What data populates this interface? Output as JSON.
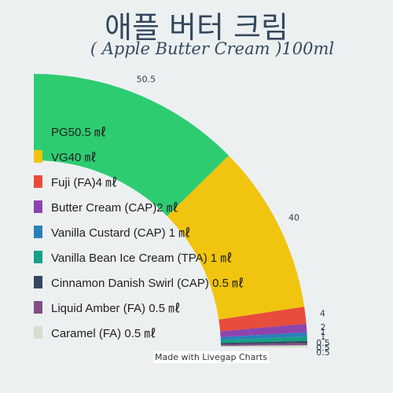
{
  "header": {
    "title": "애플 버터 크림",
    "subtitle": "( Apple Butter Cream )100ml"
  },
  "credit": "Made with Livegap Charts",
  "legend": [
    {
      "label": "PG50.5 ㎖",
      "color": "#2ecc71"
    },
    {
      "label": "VG40 ㎖",
      "color": "#f1c40f"
    },
    {
      "label": "Fuji (FA)4 ㎖",
      "color": "#e74c3c"
    },
    {
      "label": "Butter Cream (CAP)2 ㎖",
      "color": "#8e44ad"
    },
    {
      "label": "Vanilla Custard (CAP) 1 ㎖",
      "color": "#2980b9"
    },
    {
      "label": "Vanilla Bean Ice Cream (TPA) 1 ㎖",
      "color": "#16a085"
    },
    {
      "label": "Cinnamon Danish Swirl (CAP) 0.5 ㎖",
      "color": "#34495e"
    },
    {
      "label": "Liquid Amber (FA) 0.5 ㎖",
      "color": "#7f4f86"
    },
    {
      "label": "Caramel (FA) 0.5 ㎖",
      "color": "#d5dfd0"
    }
  ],
  "chart_data": {
    "type": "pie",
    "title": "애플 버터 크림",
    "subtitle": "( Apple Butter Cream )100ml",
    "categories": [
      "PG",
      "VG",
      "Fuji (FA)",
      "Butter Cream (CAP)",
      "Vanilla Custard (CAP)",
      "Vanilla Bean Ice Cream (TPA)",
      "Cinnamon Danish Swirl (CAP)",
      "Liquid Amber (FA)",
      "Caramel (FA)"
    ],
    "values": [
      50.5,
      40,
      4,
      2,
      1,
      1,
      0.5,
      0.5,
      0.5
    ],
    "data_labels": [
      "50.5",
      "40",
      "4",
      "2",
      "1",
      "1",
      "0.5",
      "0.5",
      "0.5"
    ],
    "colors": [
      "#2ecc71",
      "#f1c40f",
      "#e74c3c",
      "#8e44ad",
      "#2980b9",
      "#16a085",
      "#34495e",
      "#7f4f86",
      "#d5dfd0"
    ],
    "legend_position": "left"
  }
}
